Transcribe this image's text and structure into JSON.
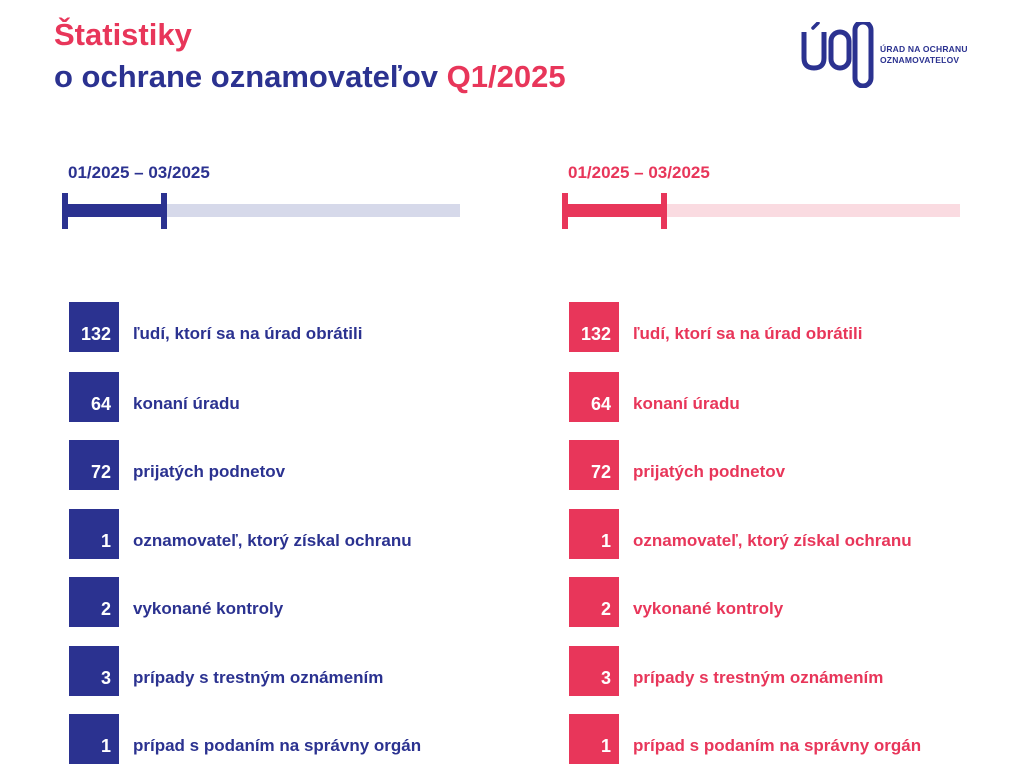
{
  "title": {
    "line1": "Štatistiky",
    "line2_main": "o ochrane oznamovateľov",
    "line2_accent": "Q1/2025"
  },
  "logo": {
    "mark": "ÚOO",
    "line1": "ÚRAD NA OCHRANU",
    "line2": "OZNAMOVATEĽOV"
  },
  "colors": {
    "blue": "#2b3290",
    "pink": "#e8365a",
    "blue_track": "#d6d9ea",
    "pink_track": "#fadbe1"
  },
  "columns": [
    {
      "theme": "blue",
      "period": "01/2025 – 03/2025",
      "progress": 0.25,
      "stats": [
        {
          "value": "132",
          "label": "ľudí, ktorí sa na úrad obrátili"
        },
        {
          "value": "64",
          "label": "konaní úradu"
        },
        {
          "value": "72",
          "label": "prijatých podnetov"
        },
        {
          "value": "1",
          "label": "oznamovateľ, ktorý získal ochranu"
        },
        {
          "value": "2",
          "label": "vykonané kontroly"
        },
        {
          "value": "3",
          "label": "prípady s trestným oznámením"
        },
        {
          "value": "1",
          "label": "prípad s podaním na správny orgán"
        }
      ]
    },
    {
      "theme": "pink",
      "period": "01/2025 – 03/2025",
      "progress": 0.25,
      "stats": [
        {
          "value": "132",
          "label": "ľudí, ktorí sa na úrad obrátili"
        },
        {
          "value": "64",
          "label": "konaní úradu"
        },
        {
          "value": "72",
          "label": "prijatých podnetov"
        },
        {
          "value": "1",
          "label": "oznamovateľ, ktorý získal ochranu"
        },
        {
          "value": "2",
          "label": "vykonané kontroly"
        },
        {
          "value": "3",
          "label": "prípady s trestným oznámením"
        },
        {
          "value": "1",
          "label": "prípad s podaním na správny orgán"
        }
      ]
    }
  ]
}
